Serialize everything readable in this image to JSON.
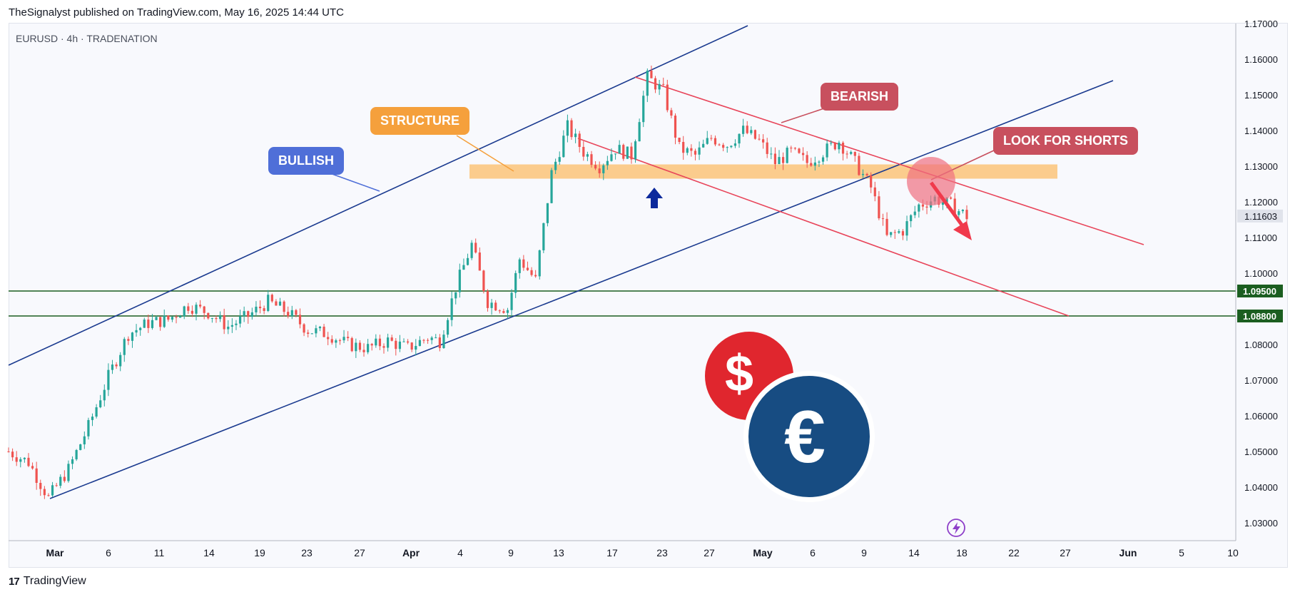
{
  "header": {
    "published": "TheSignalyst published on TradingView.com, May 16, 2025 14:44 UTC"
  },
  "symbol": {
    "text": "EURUSD · 4h · TRADENATION"
  },
  "footer": {
    "brand": "TradingView",
    "logo": "17"
  },
  "colors": {
    "bull": "#26a69a",
    "bear": "#ef5350",
    "channel_blue": "#1a3a8f",
    "channel_red": "#e8455a",
    "zone": "#fbc781",
    "support": "#1b5e20",
    "bullish_box": "#4f6fd8",
    "structure_box": "#f5a03c",
    "bearish_box": "#c8505e"
  },
  "callouts": {
    "bullish": "BULLISH",
    "structure": "STRUCTURE",
    "bearish": "BEARISH",
    "shorts": "LOOK FOR SHORTS"
  },
  "icons": [
    "dollar-coin-icon",
    "euro-coin-icon",
    "lightning-icon",
    "up-arrow-icon",
    "down-arrow-icon"
  ],
  "chart_data": {
    "type": "candlestick",
    "symbol": "EURUSD",
    "timeframe": "4h",
    "ylim": [
      1.025,
      1.17
    ],
    "y_ticks": [
      "1.17000",
      "1.16000",
      "1.15000",
      "1.14000",
      "1.13000",
      "1.12000",
      "1.11000",
      "1.10000",
      "1.09000",
      "1.08000",
      "1.07000",
      "1.06000",
      "1.05000",
      "1.04000",
      "1.03000"
    ],
    "x_ticks": [
      "Mar",
      "6",
      "11",
      "14",
      "19",
      "23",
      "27",
      "Apr",
      "4",
      "9",
      "13",
      "17",
      "23",
      "27",
      "May",
      "6",
      "9",
      "14",
      "18",
      "22",
      "27",
      "Jun",
      "5",
      "10"
    ],
    "current_price": "1.11603",
    "levels": [
      {
        "label": "1.09500",
        "value": 1.095
      },
      {
        "label": "1.08800",
        "value": 1.088
      }
    ],
    "structure_zone": [
      1.1265,
      1.1305
    ],
    "price_path": [
      [
        0,
        1.05
      ],
      [
        5,
        1.047
      ],
      [
        10,
        1.037
      ],
      [
        15,
        1.045
      ],
      [
        20,
        1.057
      ],
      [
        25,
        1.071
      ],
      [
        30,
        1.083
      ],
      [
        35,
        1.086
      ],
      [
        40,
        1.087
      ],
      [
        45,
        1.091
      ],
      [
        50,
        1.089
      ],
      [
        55,
        1.085
      ],
      [
        60,
        1.088
      ],
      [
        65,
        1.092
      ],
      [
        70,
        1.089
      ],
      [
        75,
        1.084
      ],
      [
        80,
        1.083
      ],
      [
        85,
        1.08
      ],
      [
        90,
        1.079
      ],
      [
        95,
        1.081
      ],
      [
        100,
        1.079
      ],
      [
        105,
        1.082
      ],
      [
        108,
        1.081
      ],
      [
        112,
        1.096
      ],
      [
        116,
        1.108
      ],
      [
        120,
        1.092
      ],
      [
        125,
        1.09
      ],
      [
        128,
        1.104
      ],
      [
        132,
        1.098
      ],
      [
        136,
        1.128
      ],
      [
        140,
        1.141
      ],
      [
        144,
        1.134
      ],
      [
        148,
        1.13
      ],
      [
        152,
        1.135
      ],
      [
        156,
        1.133
      ],
      [
        160,
        1.155
      ],
      [
        164,
        1.151
      ],
      [
        168,
        1.135
      ],
      [
        172,
        1.133
      ],
      [
        176,
        1.138
      ],
      [
        180,
        1.136
      ],
      [
        184,
        1.14
      ],
      [
        188,
        1.137
      ],
      [
        192,
        1.131
      ],
      [
        196,
        1.134
      ],
      [
        200,
        1.131
      ],
      [
        204,
        1.134
      ],
      [
        208,
        1.137
      ],
      [
        212,
        1.131
      ],
      [
        216,
        1.124
      ],
      [
        220,
        1.11
      ],
      [
        224,
        1.112
      ],
      [
        228,
        1.119
      ],
      [
        232,
        1.121
      ],
      [
        236,
        1.119
      ],
      [
        240,
        1.116
      ]
    ]
  }
}
